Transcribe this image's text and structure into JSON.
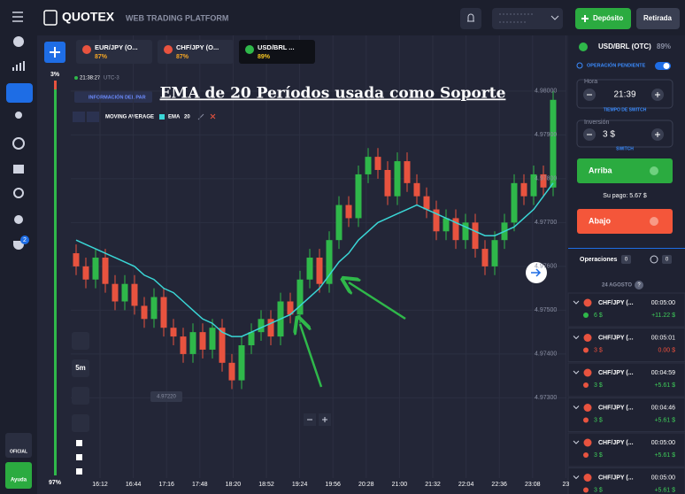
{
  "header": {
    "brand": "QUOTEX",
    "subtitle": "WEB TRADING PLATFORM",
    "deposit": "Depósito",
    "withdraw": "Retirada"
  },
  "tabs": [
    {
      "name": "EUR/JPY (O...",
      "payout": "87%"
    },
    {
      "name": "CHF/JPY (O...",
      "payout": "87%"
    },
    {
      "name": "USD/BRL ...",
      "payout": "89%"
    }
  ],
  "sidebar": {
    "badge": "2",
    "official": "OFICIAL",
    "help": "Ayuda"
  },
  "chart": {
    "type": "candlestick",
    "title": "EMA de 20 Períodos usada como Soporte",
    "clock": "21:38:27",
    "timezone": "UTC-3",
    "pair_info": "INFORMACIÓN DEL PAR",
    "indicator": "MOVING AVERAGE",
    "indicator_type": "EMA",
    "indicator_period": "20",
    "timeframe": "5m",
    "sentiment_top": "3%",
    "sentiment_bottom": "97%",
    "price_label": "4.97220",
    "categories": [
      "16:12",
      "16:44",
      "17:16",
      "17:48",
      "18:20",
      "18:52",
      "19:24",
      "19:56",
      "20:28",
      "21:00",
      "21:32",
      "22:04",
      "22:36",
      "23:08",
      "23"
    ],
    "ylim": [
      4.97117,
      4.98127
    ],
    "yticks": [
      {
        "value": 4.98,
        "label": "4.98000"
      },
      {
        "value": 4.979,
        "label": "4.97900"
      },
      {
        "value": 4.978,
        "label": "4.97800"
      },
      {
        "value": 4.977,
        "label": "4.97700"
      },
      {
        "value": 4.976,
        "label": "4.97600"
      },
      {
        "value": 4.975,
        "label": "4.97500"
      },
      {
        "value": 4.974,
        "label": "4.97400"
      },
      {
        "value": 4.973,
        "label": "4.97300"
      }
    ],
    "up_color": "#2fb84a",
    "down_color": "#e8533f",
    "ema_color": "#3ad6d6",
    "open": [
      4.9763,
      4.976,
      4.9757,
      4.9762,
      4.9756,
      4.9752,
      4.9756,
      4.9751,
      4.9748,
      4.9753,
      4.9746,
      4.9744,
      4.974,
      4.9745,
      4.9741,
      4.9746,
      4.9738,
      4.9734,
      4.9742,
      4.9745,
      4.9748,
      4.9744,
      4.9752,
      4.9749,
      4.9757,
      4.9762,
      4.9756,
      4.9766,
      4.9774,
      4.9771,
      4.9781,
      4.9785,
      4.9782,
      4.9776,
      4.9784,
      4.9779,
      4.9776,
      4.9773,
      4.9768,
      4.9771,
      4.9766,
      4.977,
      4.9764,
      4.976,
      4.9766,
      4.977,
      4.9779,
      4.9776,
      4.9781,
      4.9778
    ],
    "close": [
      4.976,
      4.9757,
      4.9762,
      4.9756,
      4.9752,
      4.9756,
      4.9751,
      4.9748,
      4.9753,
      4.9746,
      4.9744,
      4.974,
      4.9745,
      4.9741,
      4.9746,
      4.9738,
      4.9734,
      4.9742,
      4.9745,
      4.9748,
      4.9744,
      4.9752,
      4.9749,
      4.9757,
      4.9762,
      4.9756,
      4.9766,
      4.9774,
      4.9771,
      4.9781,
      4.9785,
      4.9782,
      4.9776,
      4.9784,
      4.9779,
      4.9776,
      4.9773,
      4.9768,
      4.9771,
      4.9766,
      4.977,
      4.9764,
      4.976,
      4.9766,
      4.977,
      4.9779,
      4.9776,
      4.9781,
      4.9778,
      4.9798
    ],
    "high": [
      4.9765,
      4.9762,
      4.9764,
      4.9764,
      4.9758,
      4.9758,
      4.9758,
      4.9753,
      4.9755,
      4.9755,
      4.9748,
      4.9746,
      4.9747,
      4.9747,
      4.9748,
      4.9748,
      4.974,
      4.9744,
      4.9747,
      4.975,
      4.975,
      4.9754,
      4.9754,
      4.9759,
      4.9764,
      4.9764,
      4.9768,
      4.9776,
      4.9776,
      4.9783,
      4.9787,
      4.9787,
      4.9784,
      4.9786,
      4.9786,
      4.9781,
      4.9778,
      4.9775,
      4.9773,
      4.9773,
      4.9772,
      4.9772,
      4.9766,
      4.9768,
      4.9772,
      4.9781,
      4.9781,
      4.9783,
      4.9783,
      4.98
    ],
    "low": [
      4.9758,
      4.9755,
      4.9755,
      4.9754,
      4.975,
      4.975,
      4.9749,
      4.9746,
      4.9746,
      4.9744,
      4.9742,
      4.9738,
      4.9738,
      4.9739,
      4.9739,
      4.9736,
      4.9732,
      4.9732,
      4.974,
      4.9743,
      4.9742,
      4.9742,
      4.9747,
      4.9747,
      4.9755,
      4.9754,
      4.9754,
      4.9764,
      4.9769,
      4.9769,
      4.9779,
      4.978,
      4.9774,
      4.9774,
      4.9777,
      4.9774,
      4.9771,
      4.9766,
      4.9766,
      4.9764,
      4.9764,
      4.9762,
      4.9758,
      4.9758,
      4.9764,
      4.9768,
      4.9774,
      4.9774,
      4.9776,
      4.9776
    ],
    "ema": [
      4.9766,
      4.9765,
      4.9764,
      4.9763,
      4.9762,
      4.9761,
      4.976,
      4.9758,
      4.9757,
      4.9755,
      4.9754,
      4.9752,
      4.975,
      4.9748,
      4.9747,
      4.9745,
      4.9744,
      4.9744,
      4.9745,
      4.9746,
      4.9747,
      4.9748,
      4.9749,
      4.9751,
      4.9753,
      4.9755,
      4.9758,
      4.9761,
      4.9763,
      4.9766,
      4.9768,
      4.977,
      4.9771,
      4.9772,
      4.9773,
      4.9774,
      4.9773,
      4.9772,
      4.9771,
      4.977,
      4.9769,
      4.9768,
      4.9767,
      4.9767,
      4.9768,
      4.9769,
      4.9771,
      4.9773,
      4.9776,
      4.9779
    ]
  },
  "panel": {
    "asset": "USD/BRL (OTC)",
    "payout": "89%",
    "pending": "OPERACIÓN PENDIENTE",
    "time_label": "Hora",
    "time": "21:39",
    "time_switch": "TIEMPO DE SWITCH",
    "amount_label": "Inversión",
    "amount": "3 $",
    "amount_switch": "SWITCH",
    "up": "Arriba",
    "payout_text": "Su pago: 5.67 $",
    "down": "Abajo",
    "trades_tab": "Operaciones",
    "trades_count": "0",
    "pending_count": "0",
    "date": "24 AGOSTO",
    "date_badge": "?",
    "trades": [
      {
        "pair": "CHF/JPY (...",
        "time": "00:05:00",
        "amount": "6 $",
        "profit": "+11.22 $",
        "profit_color": "#3fcf5a"
      },
      {
        "pair": "CHF/JPY (...",
        "time": "00:05:01",
        "amount": "3 $",
        "profit": "0.00 $",
        "profit_color": "#f0503c"
      },
      {
        "pair": "CHF/JPY (...",
        "time": "00:04:59",
        "amount": "3 $",
        "profit": "+5.61 $",
        "profit_color": "#3fcf5a"
      },
      {
        "pair": "CHF/JPY (...",
        "time": "00:04:46",
        "amount": "3 $",
        "profit": "+5.61 $",
        "profit_color": "#3fcf5a"
      },
      {
        "pair": "CHF/JPY (...",
        "time": "00:05:00",
        "amount": "3 $",
        "profit": "+5.61 $",
        "profit_color": "#3fcf5a"
      },
      {
        "pair": "CHF/JPY (...",
        "time": "00:05:00",
        "amount": "3 $",
        "profit": "+5.61 $",
        "profit_color": "#3fcf5a"
      }
    ]
  }
}
